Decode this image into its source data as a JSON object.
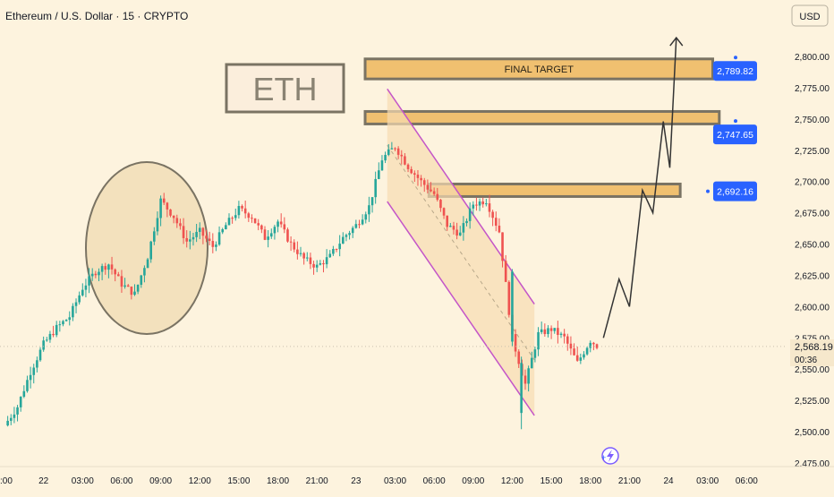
{
  "header": {
    "symbol_line": "Ethereum / U.S. Dollar · 15 · CRYPTO",
    "currency_button": "USD"
  },
  "annotations": {
    "eth_label": "ETH",
    "final_target_label": "FINAL TARGET",
    "price_badges": [
      "2,789.82",
      "2,747.65",
      "2,692.16"
    ],
    "current_price": "2,568.19",
    "countdown": "00:36"
  },
  "colors": {
    "background": "#fdf3de",
    "bull_candle": "#26a69a",
    "bear_candle": "#ef5350",
    "target_zone": "#f0c070",
    "zone_border": "#7a7363",
    "badge": "#2962ff",
    "channel_line": "#c455c8",
    "path_line": "#333333",
    "circle_fill": "#f3e1bd"
  },
  "chart_data": {
    "type": "candlestick",
    "title": "Ethereum / U.S. Dollar · 15 · CRYPTO",
    "xlabel": "",
    "ylabel": "",
    "currency": "USD",
    "interval": "15",
    "ylim": [
      2470,
      2835
    ],
    "grid": false,
    "y_ticks": [
      {
        "value": 2800,
        "label": "2,800.00"
      },
      {
        "value": 2775,
        "label": "2,775.00"
      },
      {
        "value": 2750,
        "label": "2,750.00"
      },
      {
        "value": 2725,
        "label": "2,725.00"
      },
      {
        "value": 2700,
        "label": "2,700.00"
      },
      {
        "value": 2675,
        "label": "2,675.00"
      },
      {
        "value": 2650,
        "label": "2,650.00"
      },
      {
        "value": 2625,
        "label": "2,625.00"
      },
      {
        "value": 2600,
        "label": "2,600.00"
      },
      {
        "value": 2575,
        "label": "2,575.00"
      },
      {
        "value": 2550,
        "label": "2,550.00"
      },
      {
        "value": 2525,
        "label": "2,525.00"
      },
      {
        "value": 2500,
        "label": "2,500.00"
      },
      {
        "value": 2475,
        "label": "2,475.00"
      }
    ],
    "x_ticks": [
      {
        "t": 0,
        "label": ":00"
      },
      {
        "t": 3,
        "label": "22"
      },
      {
        "t": 6,
        "label": "03:00"
      },
      {
        "t": 9,
        "label": "06:00"
      },
      {
        "t": 12,
        "label": "09:00"
      },
      {
        "t": 15,
        "label": "12:00"
      },
      {
        "t": 18,
        "label": "15:00"
      },
      {
        "t": 21,
        "label": "18:00"
      },
      {
        "t": 24,
        "label": "21:00"
      },
      {
        "t": 27,
        "label": "23"
      },
      {
        "t": 30,
        "label": "03:00"
      },
      {
        "t": 33,
        "label": "06:00"
      },
      {
        "t": 36,
        "label": "09:00"
      },
      {
        "t": 39,
        "label": "12:00"
      },
      {
        "t": 42,
        "label": "15:00"
      },
      {
        "t": 45,
        "label": "18:00"
      },
      {
        "t": 48,
        "label": "21:00"
      },
      {
        "t": 51,
        "label": "24"
      },
      {
        "t": 54,
        "label": "03:00"
      },
      {
        "t": 57,
        "label": "06:00"
      }
    ],
    "price_trajectory": [
      [
        0,
        2505
      ],
      [
        1,
        2520
      ],
      [
        2,
        2548
      ],
      [
        3,
        2570
      ],
      [
        4,
        2583
      ],
      [
        5,
        2592
      ],
      [
        6,
        2615
      ],
      [
        7,
        2628
      ],
      [
        8,
        2634
      ],
      [
        9,
        2618
      ],
      [
        10,
        2610
      ],
      [
        11,
        2640
      ],
      [
        12,
        2685
      ],
      [
        13,
        2672
      ],
      [
        14,
        2652
      ],
      [
        15,
        2660
      ],
      [
        16,
        2648
      ],
      [
        17,
        2665
      ],
      [
        18,
        2678
      ],
      [
        19,
        2672
      ],
      [
        20,
        2655
      ],
      [
        21,
        2668
      ],
      [
        22,
        2650
      ],
      [
        23,
        2638
      ],
      [
        24,
        2632
      ],
      [
        25,
        2640
      ],
      [
        26,
        2655
      ],
      [
        27,
        2665
      ],
      [
        28,
        2680
      ],
      [
        29,
        2718
      ],
      [
        30,
        2728
      ],
      [
        31,
        2712
      ],
      [
        32,
        2700
      ],
      [
        33,
        2690
      ],
      [
        34,
        2665
      ],
      [
        35,
        2658
      ],
      [
        36,
        2682
      ],
      [
        37,
        2685
      ],
      [
        38,
        2660
      ],
      [
        39,
        2575
      ],
      [
        40,
        2538
      ],
      [
        41,
        2578
      ],
      [
        42,
        2582
      ],
      [
        43,
        2575
      ],
      [
        44,
        2555
      ],
      [
        45,
        2573
      ],
      [
        45.6,
        2568
      ]
    ],
    "zones": [
      {
        "label": "FINAL TARGET",
        "t_start": 27.7,
        "t_end": 54.4,
        "low": 2782,
        "high": 2798
      },
      {
        "label": "",
        "t_start": 27.7,
        "t_end": 54.9,
        "low": 2746,
        "high": 2756
      },
      {
        "label": "",
        "t_start": 32.6,
        "t_end": 51.9,
        "low": 2688,
        "high": 2698
      }
    ],
    "price_levels": [
      2789.82,
      2747.65,
      2692.16
    ],
    "current_price": 2568.19,
    "projection_path": [
      [
        46.0,
        2575
      ],
      [
        47.2,
        2622
      ],
      [
        48.0,
        2600
      ],
      [
        49.0,
        2693
      ],
      [
        49.8,
        2675
      ],
      [
        50.6,
        2748
      ],
      [
        51.1,
        2711
      ],
      [
        51.6,
        2815
      ]
    ],
    "channel": {
      "upper": [
        [
          29.4,
          2774
        ],
        [
          40.7,
          2602
        ]
      ],
      "lower": [
        [
          29.4,
          2684
        ],
        [
          40.7,
          2513
        ]
      ]
    }
  }
}
